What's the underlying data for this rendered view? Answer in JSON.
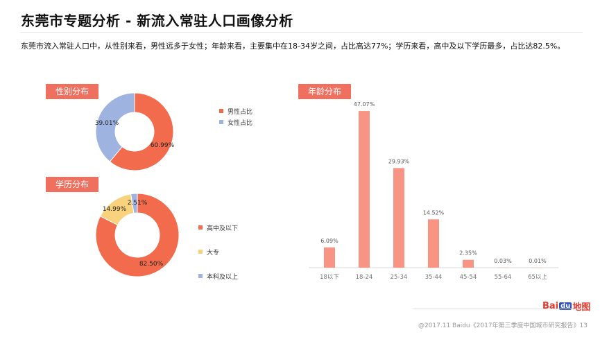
{
  "header": {
    "title": "东莞市专题分析 - 新流入常驻人口画像分析",
    "subtitle": "东莞市流入常驻人口中，从性别来看，男性远多于女性；年龄来看，主要集中在18-34岁之间，占比高达77%；学历来看，高中及以下学历最多，占比达82.5%。"
  },
  "colors": {
    "accent": "#f07060",
    "male": "#f26b4d",
    "female": "#9fb3e0",
    "edu_high": "#f26b4d",
    "edu_college": "#f8d27c",
    "edu_bachelor": "#9fb3e0",
    "age_bar": "#f79483"
  },
  "gender": {
    "tag": "性别分布",
    "legend": [
      "男性占比",
      "女性占比"
    ]
  },
  "education": {
    "tag": "学历分布",
    "legend": [
      "高中及以下",
      "大专",
      "本科及以上"
    ]
  },
  "age": {
    "tag": "年龄分布"
  },
  "chart_data": [
    {
      "type": "pie",
      "style": "donut",
      "labels": [
        "男性占比",
        "女性占比"
      ],
      "values": [
        60.99,
        39.01
      ],
      "value_labels": [
        "60.99%",
        "39.01%"
      ],
      "legend": "right"
    },
    {
      "type": "pie",
      "style": "donut",
      "labels": [
        "高中及以下",
        "大专",
        "本科及以上"
      ],
      "values": [
        82.5,
        14.99,
        2.51
      ],
      "value_labels": [
        "82.50%",
        "14.99%",
        "2.51%"
      ],
      "legend": "right"
    },
    {
      "type": "bar",
      "categories": [
        "18以下",
        "18-24",
        "25-34",
        "35-44",
        "45-54",
        "55-64",
        "65以上"
      ],
      "values": [
        6.09,
        47.07,
        29.93,
        14.52,
        2.35,
        0.03,
        0.01
      ],
      "value_labels": [
        "6.09%",
        "47.07%",
        "29.93%",
        "14.52%",
        "2.35%",
        "0.03%",
        "0.01%"
      ],
      "ylim": [
        0,
        50
      ],
      "grid": false
    }
  ],
  "footer": {
    "copyright": "@2017.11 Baidu《2017年第三季度中国城市研究报告》13"
  },
  "logo": {
    "text_left": "Bai",
    "text_box": "du",
    "text_right": "地图"
  }
}
